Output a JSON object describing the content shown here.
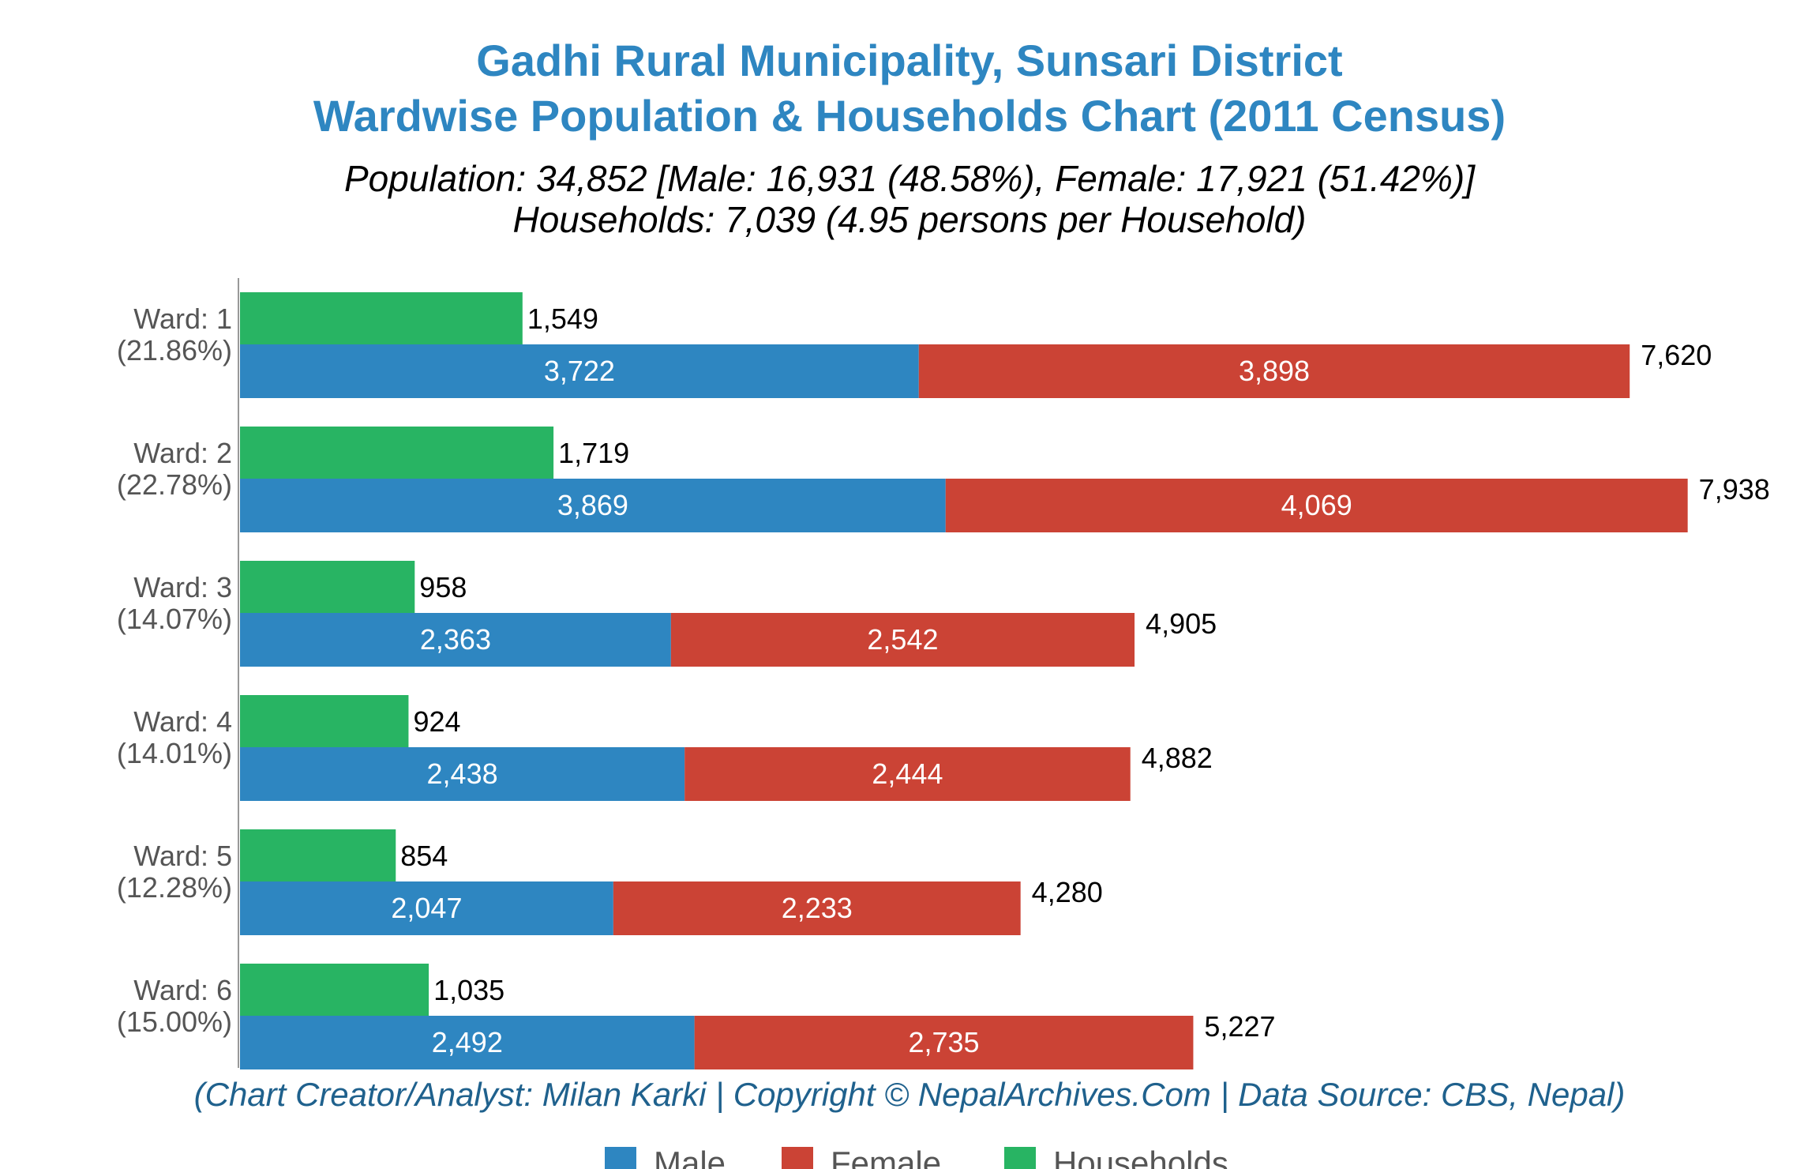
{
  "chart_data": {
    "type": "bar",
    "orientation": "horizontal",
    "title_lines": [
      "Gadhi Rural Municipality, Sunsari District",
      "Wardwise Population & Households Chart (2011 Census)"
    ],
    "subtitle_lines": [
      "Population: 34,852 [Male: 16,931 (48.58%), Female: 17,921 (51.42%)]",
      "Households: 7,039 (4.95 persons per Household)"
    ],
    "categories": [
      {
        "name": "Ward: 1",
        "pct": "(21.86%)"
      },
      {
        "name": "Ward: 2",
        "pct": "(22.78%)"
      },
      {
        "name": "Ward: 3",
        "pct": "(14.07%)"
      },
      {
        "name": "Ward: 4",
        "pct": "(14.01%)"
      },
      {
        "name": "Ward: 5",
        "pct": "(12.28%)"
      },
      {
        "name": "Ward: 6",
        "pct": "(15.00%)"
      }
    ],
    "series": [
      {
        "name": "Male",
        "color": "#2e86c1",
        "values": [
          3722,
          3869,
          2363,
          2438,
          2047,
          2492
        ],
        "labels": [
          "3,722",
          "3,869",
          "2,363",
          "2,438",
          "2,047",
          "2,492"
        ]
      },
      {
        "name": "Female",
        "color": "#cb4335",
        "values": [
          3898,
          4069,
          2542,
          2444,
          2233,
          2735
        ],
        "labels": [
          "3,898",
          "4,069",
          "2,542",
          "2,444",
          "2,233",
          "2,735"
        ]
      },
      {
        "name": "Households",
        "color": "#28b463",
        "values": [
          1549,
          1719,
          958,
          924,
          854,
          1035
        ],
        "labels": [
          "1,549",
          "1,719",
          "958",
          "924",
          "854",
          "1,035"
        ]
      }
    ],
    "totals": [
      7620,
      7938,
      4905,
      4882,
      4280,
      5227
    ],
    "total_labels": [
      "7,620",
      "7,938",
      "4,905",
      "4,882",
      "4,280",
      "5,227"
    ],
    "xlim": [
      0,
      8000
    ],
    "grid": false,
    "legend_position": "bottom",
    "legend": [
      "Male",
      "Female",
      "Households"
    ],
    "credit": "(Chart Creator/Analyst: Milan Karki | Copyright © NepalArchives.Com | Data Source: CBS, Nepal)",
    "colors": {
      "title": "#2e86c1",
      "credit": "#1f618d",
      "label": "#555555",
      "axis": "#999999"
    }
  }
}
